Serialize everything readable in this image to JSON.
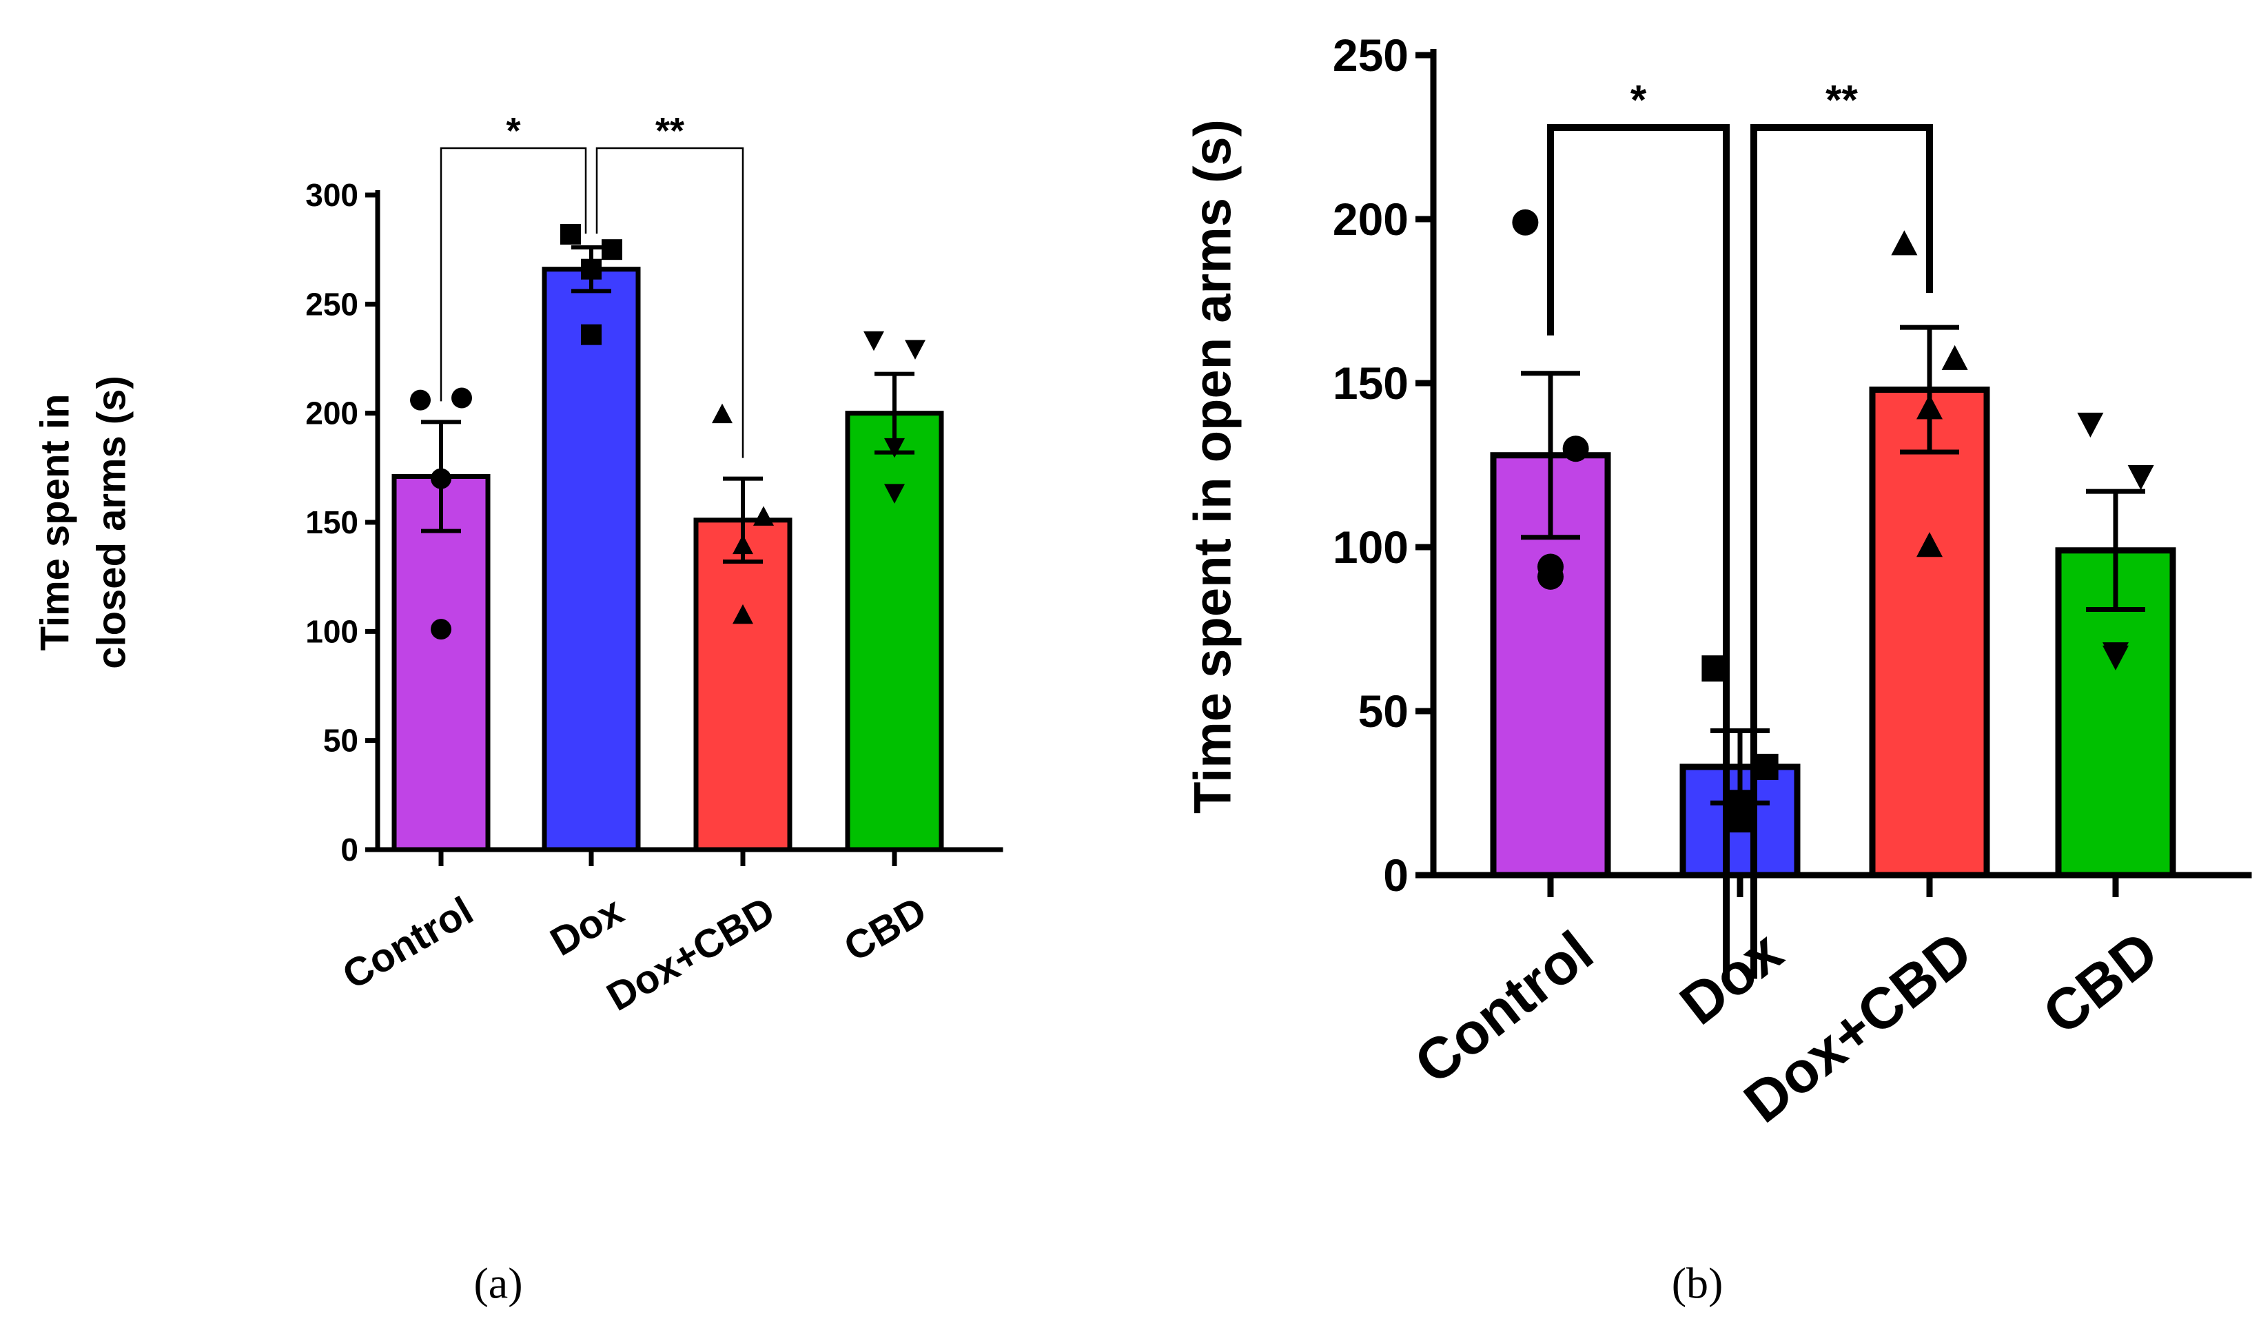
{
  "chart_data": [
    {
      "type": "bar",
      "panel_label": "(a)",
      "ylabel_lines": [
        "Time spent in",
        "closed arms (s)"
      ],
      "categories": [
        "Control",
        "Dox",
        "Dox+CBD",
        "CBD"
      ],
      "values": [
        171,
        266,
        151,
        200
      ],
      "sem": [
        25,
        10,
        19,
        18
      ],
      "colors": [
        "#c044e6",
        "#3d3dff",
        "#ff4040",
        "#00c000"
      ],
      "markers": [
        "circle",
        "square",
        "triangle-up",
        "triangle-down"
      ],
      "points": [
        [
          206,
          207,
          170,
          101
        ],
        [
          282,
          275,
          266,
          236
        ],
        [
          199,
          152,
          139,
          107
        ],
        [
          234,
          230,
          185,
          164
        ]
      ],
      "ylim": [
        0,
        300
      ],
      "yticks": [
        0,
        50,
        100,
        150,
        200,
        250,
        300
      ],
      "significance": [
        {
          "from": 0,
          "to": 1,
          "label": "*"
        },
        {
          "from": 1,
          "to": 2,
          "label": "**"
        }
      ]
    },
    {
      "type": "bar",
      "panel_label": "(b)",
      "ylabel_lines": [
        "Time spent in open arms (s)"
      ],
      "categories": [
        "Control",
        "Dox",
        "Dox+CBD",
        "CBD"
      ],
      "values": [
        128,
        33,
        148,
        99
      ],
      "sem": [
        25,
        11,
        19,
        18
      ],
      "colors": [
        "#c044e6",
        "#3d3dff",
        "#ff4040",
        "#00c000"
      ],
      "markers": [
        "circle",
        "square",
        "triangle-up",
        "triangle-down"
      ],
      "points": [
        [
          199,
          130,
          94,
          91
        ],
        [
          63,
          33,
          22,
          17
        ],
        [
          192,
          157,
          142,
          100
        ],
        [
          138,
          122,
          68,
          67
        ]
      ],
      "ylim": [
        0,
        250
      ],
      "yticks": [
        0,
        50,
        100,
        150,
        200,
        250
      ],
      "significance": [
        {
          "from": 0,
          "to": 1,
          "label": "*"
        },
        {
          "from": 1,
          "to": 2,
          "label": "**"
        }
      ]
    }
  ]
}
